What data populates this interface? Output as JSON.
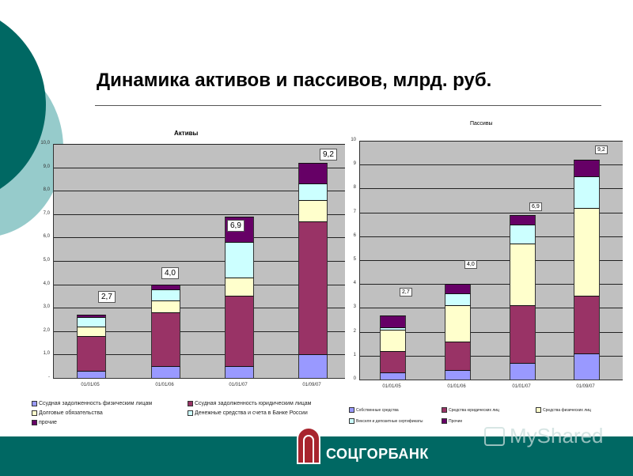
{
  "slide": {
    "title": "Динамика активов и пассивов, млрд. руб.",
    "bank_name": "СОЦГОРБАНК",
    "watermark": "MyShared",
    "colors": {
      "dark_teal": "#006863",
      "light_teal": "#96cbcb",
      "logo_red": "#a8242d",
      "plot_bg": "#c0c0c0"
    }
  },
  "chart_data": [
    {
      "type": "bar",
      "stacked": true,
      "title": "Активы",
      "categories": [
        "01/01/05",
        "01/01/06",
        "01/01/07",
        "01/09/07"
      ],
      "ylim": [
        0,
        10
      ],
      "yticks": [
        "-",
        "1,0",
        "2,0",
        "3,0",
        "4,0",
        "5,0",
        "6,0",
        "7,0",
        "8,0",
        "9,0",
        "10,0"
      ],
      "totals": [
        "2,7",
        "4,0",
        "6,9",
        "9,2"
      ],
      "series": [
        {
          "name": "Ссудная задолженность физическим лицам",
          "color": "#9999ff",
          "values": [
            0.3,
            0.5,
            0.5,
            1.0
          ]
        },
        {
          "name": "Ссудная задолженность юридическим лицам",
          "color": "#993366",
          "values": [
            1.5,
            2.3,
            3.0,
            5.7
          ]
        },
        {
          "name": "Долговые обязательства",
          "color": "#ffffcc",
          "values": [
            0.4,
            0.5,
            0.8,
            0.9
          ]
        },
        {
          "name": "Денежные средства и счета в Банке России",
          "color": "#ccffff",
          "values": [
            0.4,
            0.5,
            1.5,
            0.7
          ]
        },
        {
          "name": "прочие",
          "color": "#660066",
          "values": [
            0.1,
            0.2,
            1.1,
            0.9
          ]
        }
      ],
      "grid": true,
      "legend_position": "bottom"
    },
    {
      "type": "bar",
      "stacked": true,
      "title": "Пассивы",
      "categories": [
        "01/01/05",
        "01/01/06",
        "01/01/07",
        "01/09/07"
      ],
      "ylim": [
        0,
        10
      ],
      "yticks": [
        "0",
        "1",
        "2",
        "3",
        "4",
        "5",
        "6",
        "7",
        "8",
        "9",
        "10"
      ],
      "totals": [
        "2,7",
        "4,0",
        "6,9",
        "9,2"
      ],
      "series": [
        {
          "name": "Собственные средства",
          "color": "#9999ff",
          "values": [
            0.3,
            0.4,
            0.7,
            1.1
          ]
        },
        {
          "name": "Средства юридических лиц",
          "color": "#993366",
          "values": [
            0.9,
            1.2,
            2.4,
            2.4
          ]
        },
        {
          "name": "Средства физических лиц",
          "color": "#ffffcc",
          "values": [
            0.9,
            1.5,
            2.6,
            3.7
          ]
        },
        {
          "name": "Векселя и депозитные сертификаты",
          "color": "#ccffff",
          "values": [
            0.1,
            0.5,
            0.8,
            1.3
          ]
        },
        {
          "name": "Прочие",
          "color": "#660066",
          "values": [
            0.5,
            0.4,
            0.4,
            0.7
          ]
        }
      ],
      "grid": true,
      "legend_position": "bottom"
    }
  ]
}
